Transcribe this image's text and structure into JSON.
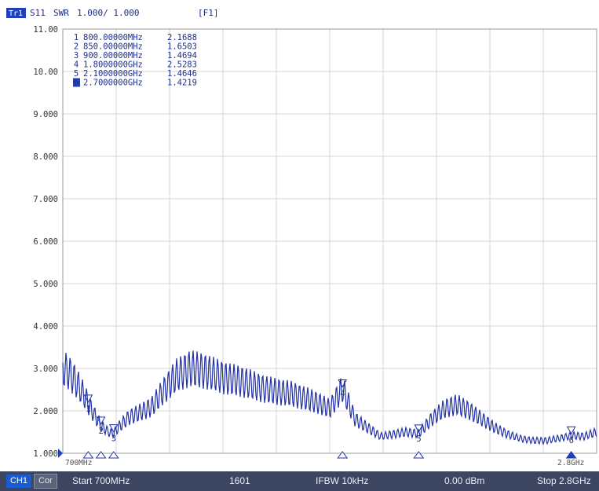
{
  "header": {
    "trace_badge": "Tr1",
    "param": "S11",
    "format": "SWR",
    "scale": "1.000/ 1.000",
    "func": "[F1]"
  },
  "marker_table": [
    {
      "num": "1",
      "freq": "800.00000MHz",
      "value": "2.1688",
      "active": false
    },
    {
      "num": "2",
      "freq": "850.00000MHz",
      "value": "1.6503",
      "active": false
    },
    {
      "num": "3",
      "freq": "900.00000MHz",
      "value": "1.4694",
      "active": false
    },
    {
      "num": "4",
      "freq": "1.8000000GHz",
      "value": "2.5283",
      "active": false
    },
    {
      "num": "5",
      "freq": "2.1000000GHz",
      "value": "1.4646",
      "active": false
    },
    {
      "num": "6",
      "freq": "2.7000000GHz",
      "value": "1.4219",
      "active": true
    }
  ],
  "status_bar": {
    "channel": "CH1",
    "correction": "Cor",
    "start": "Start 700MHz",
    "points": "1601",
    "ifbw": "IFBW 10kHz",
    "power": "0.00 dBm",
    "stop": "Stop 2.8GHz"
  },
  "chart_data": {
    "type": "line",
    "xlabel": "",
    "ylabel": "",
    "x_unit": "MHz",
    "xlim": [
      700,
      2800
    ],
    "ylim": [
      1.0,
      11.0
    ],
    "y_ticks": [
      "11.00",
      "10.00",
      "9.000",
      "8.000",
      "7.000",
      "6.000",
      "5.000",
      "4.000",
      "3.000",
      "2.000",
      "1.000"
    ],
    "x_tick_left": "700MHz",
    "x_tick_right": "2.8GHz",
    "grid": true,
    "reference_level": 1.0,
    "trace_color": "#2231a6",
    "series": [
      {
        "name": "S11",
        "x": [
          700,
          725,
          750,
          770,
          790,
          800,
          820,
          850,
          880,
          900,
          920,
          960,
          1000,
          1050,
          1100,
          1150,
          1200,
          1250,
          1300,
          1350,
          1400,
          1450,
          1500,
          1550,
          1600,
          1650,
          1700,
          1750,
          1800,
          1850,
          1900,
          1950,
          2000,
          2050,
          2100,
          2150,
          2200,
          2250,
          2300,
          2350,
          2400,
          2450,
          2500,
          2550,
          2600,
          2650,
          2700,
          2750,
          2800
        ],
        "y": [
          3.0,
          2.9,
          2.7,
          2.5,
          2.3,
          2.17,
          1.95,
          1.65,
          1.5,
          1.47,
          1.62,
          1.85,
          1.95,
          2.1,
          2.5,
          2.85,
          3.0,
          2.95,
          2.85,
          2.75,
          2.7,
          2.6,
          2.5,
          2.45,
          2.4,
          2.3,
          2.2,
          2.05,
          2.53,
          1.8,
          1.6,
          1.4,
          1.45,
          1.5,
          1.46,
          1.8,
          2.05,
          2.15,
          2.0,
          1.8,
          1.6,
          1.45,
          1.35,
          1.3,
          1.3,
          1.35,
          1.42,
          1.4,
          1.5
        ]
      }
    ],
    "markers": [
      {
        "label": "1",
        "x": 800,
        "y": 2.1688
      },
      {
        "label": "2",
        "x": 850,
        "y": 1.6503
      },
      {
        "label": "3",
        "x": 900,
        "y": 1.4694
      },
      {
        "label": "4",
        "x": 1800,
        "y": 2.5283
      },
      {
        "label": "5",
        "x": 2100,
        "y": 1.4646
      },
      {
        "label": "6",
        "x": 2700,
        "y": 1.4219
      }
    ]
  }
}
